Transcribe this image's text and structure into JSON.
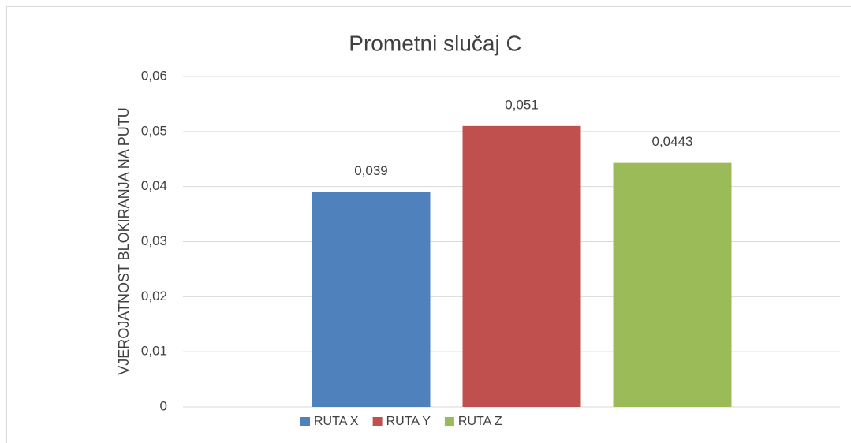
{
  "chart_data": {
    "type": "bar",
    "title": "Prometni slučaj C",
    "ylabel": "VJEROJATNOST BLOKIRANJA NA PUTU",
    "categories": [
      null
    ],
    "series": [
      {
        "name": "RUTA X",
        "color": "#4f81bd",
        "values": [
          0.039
        ],
        "value_labels": [
          "0,039"
        ]
      },
      {
        "name": "RUTA Y",
        "color": "#c0504d",
        "values": [
          0.051
        ],
        "value_labels": [
          "0,051"
        ]
      },
      {
        "name": "RUTA Z",
        "color": "#9bbb59",
        "values": [
          0.0443
        ],
        "value_labels": [
          "0,0443"
        ]
      }
    ],
    "ylim": [
      0,
      0.06
    ],
    "yticks": [
      0,
      {
        "value": 0.01,
        "label": "0,01"
      },
      {
        "value": 0.02,
        "label": "0,02"
      },
      {
        "value": 0.03,
        "label": "0,03"
      },
      {
        "value": 0.04,
        "label": "0,04"
      },
      {
        "value": 0.05,
        "label": "0,05"
      },
      {
        "value": 0.06,
        "label": "0,06"
      }
    ],
    "grid": true,
    "legend": "bottom"
  }
}
